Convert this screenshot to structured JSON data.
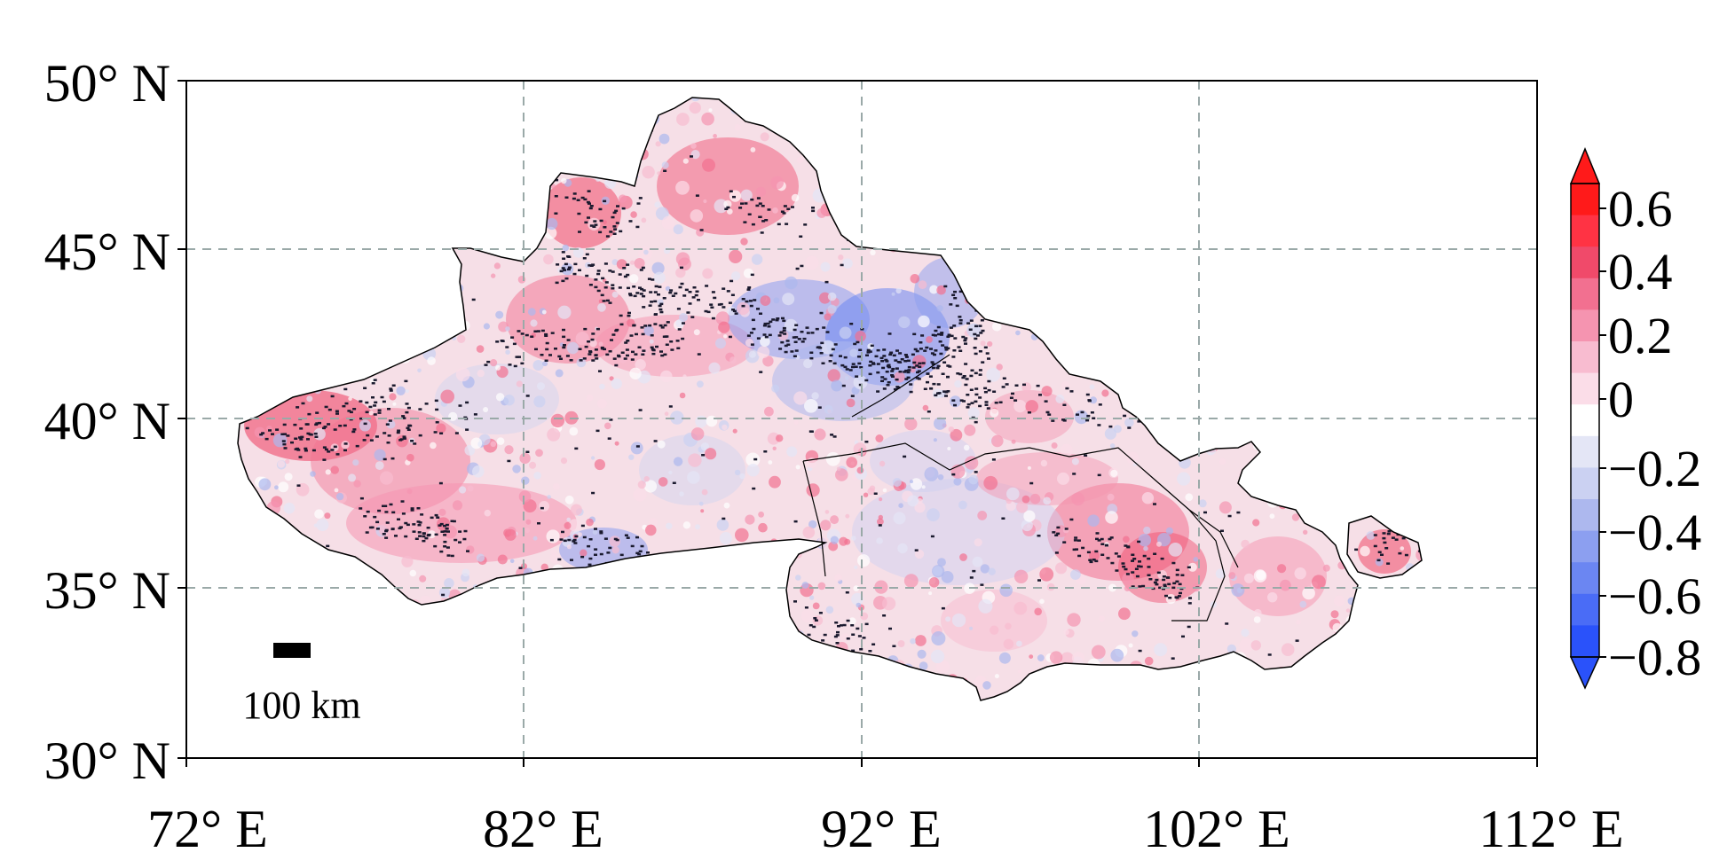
{
  "map": {
    "lat_ticks": [
      "50° N",
      "45° N",
      "40° N",
      "35° N",
      "30° N"
    ],
    "lon_ticks": [
      "72° E",
      "82° E",
      "92° E",
      "102° E",
      "112° E"
    ],
    "extent": {
      "lon": [
        72,
        112
      ],
      "lat": [
        30,
        50
      ]
    },
    "gridlines": "dashed",
    "scale_bar": {
      "label": "100 km"
    }
  },
  "colorbar": {
    "tick_labels": [
      "0.6",
      "0.4",
      "0.2",
      "0",
      "−0.2",
      "−0.4",
      "−0.6",
      "−0.8"
    ],
    "range": [
      -0.8,
      0.7
    ],
    "extend": "both",
    "colors": [
      "#ff1a1a",
      "#ff3344",
      "#f04a6a",
      "#f27090",
      "#f594b0",
      "#f8bcd0",
      "#fbdde8",
      "#ffffff",
      "#e4e6f6",
      "#cbd1f2",
      "#adb8ee",
      "#8c9ff0",
      "#6b86f2",
      "#4a6cf6",
      "#2a52fa"
    ]
  }
}
